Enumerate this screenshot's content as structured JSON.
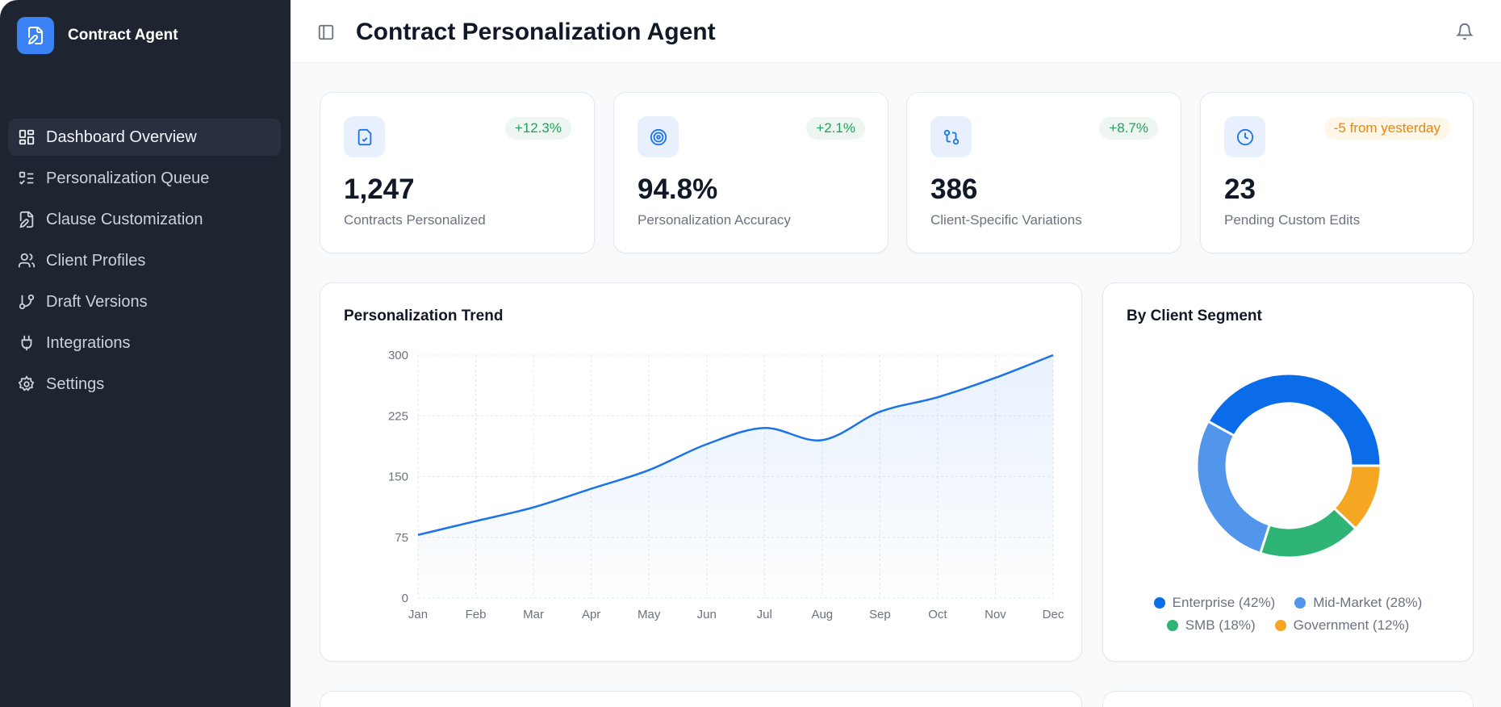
{
  "sidebar": {
    "brand": "Contract Agent",
    "items": [
      {
        "label": "Dashboard Overview",
        "icon": "layout-dashboard-icon",
        "active": true
      },
      {
        "label": "Personalization Queue",
        "icon": "list-checks-icon"
      },
      {
        "label": "Clause Customization",
        "icon": "file-pen-icon"
      },
      {
        "label": "Client Profiles",
        "icon": "users-icon"
      },
      {
        "label": "Draft Versions",
        "icon": "git-branch-icon"
      },
      {
        "label": "Integrations",
        "icon": "plug-icon"
      },
      {
        "label": "Settings",
        "icon": "settings-icon"
      }
    ]
  },
  "header": {
    "title": "Contract Personalization Agent"
  },
  "stats": [
    {
      "value": "1,247",
      "label": "Contracts Personalized",
      "badge": "+12.3%",
      "badge_type": "up",
      "icon": "file-check-icon"
    },
    {
      "value": "94.8%",
      "label": "Personalization Accuracy",
      "badge": "+2.1%",
      "badge_type": "up",
      "icon": "target-icon"
    },
    {
      "value": "386",
      "label": "Client-Specific Variations",
      "badge": "+8.7%",
      "badge_type": "up",
      "icon": "git-compare-icon"
    },
    {
      "value": "23",
      "label": "Pending Custom Edits",
      "badge": "-5 from yesterday",
      "badge_type": "warn",
      "icon": "clock-icon"
    }
  ],
  "chart_data": [
    {
      "type": "area",
      "title": "Personalization Trend",
      "categories": [
        "Jan",
        "Feb",
        "Mar",
        "Apr",
        "May",
        "Jun",
        "Jul",
        "Aug",
        "Sep",
        "Oct",
        "Nov",
        "Dec"
      ],
      "values": [
        78,
        95,
        112,
        135,
        158,
        190,
        210,
        195,
        230,
        248,
        272,
        300
      ],
      "yticks": [
        0,
        75,
        150,
        225,
        300
      ],
      "ylim": [
        0,
        300
      ],
      "grid": true,
      "color": "#1a73e8"
    },
    {
      "type": "pie",
      "title": "By Client Segment",
      "donut": true,
      "legend": "bottom",
      "labels": [
        "Enterprise (42%)",
        "Mid-Market (28%)",
        "SMB (18%)",
        "Government (12%)"
      ],
      "values": [
        42,
        28,
        18,
        12
      ],
      "colors": [
        "#0a6ce9",
        "#5196ea",
        "#2eb576",
        "#f5a623"
      ]
    }
  ]
}
